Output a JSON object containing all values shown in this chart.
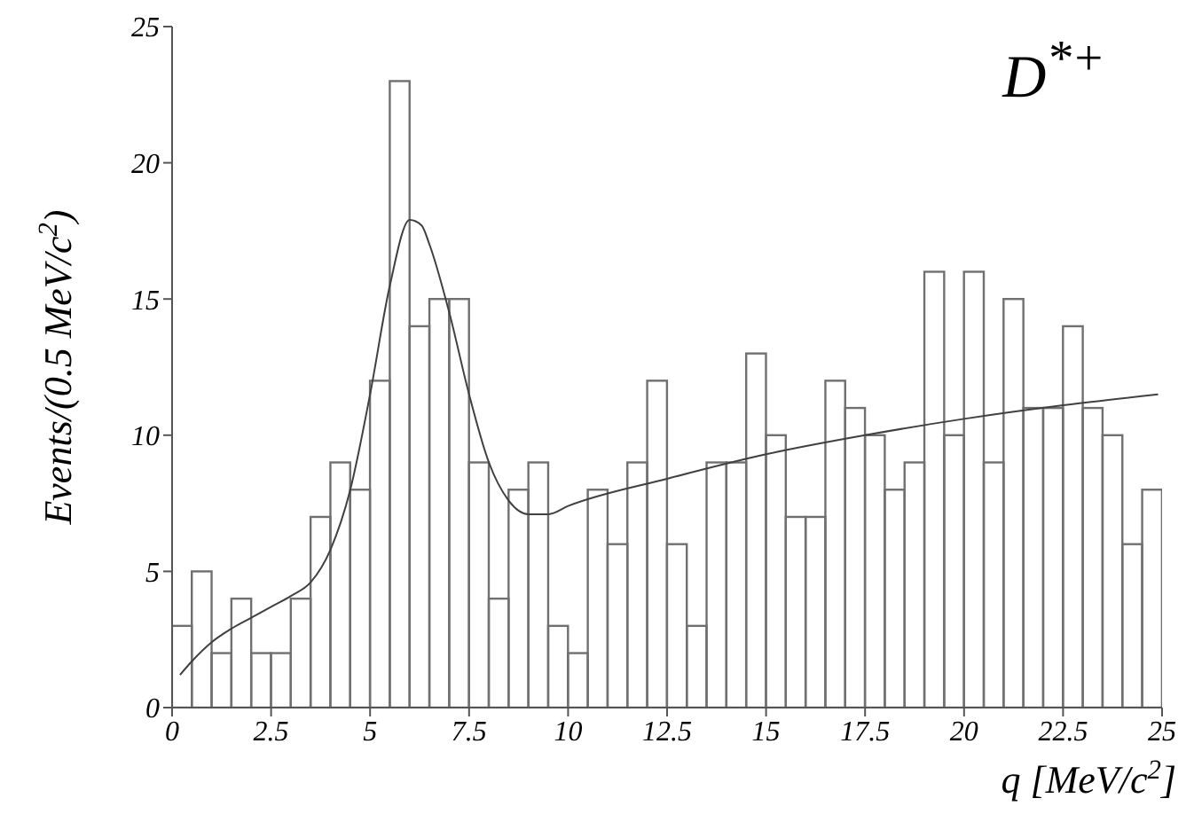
{
  "chart_data": {
    "type": "histogram",
    "title": "D$^{*+}$",
    "xlabel": "q [MeV/c$^{2}$]",
    "ylabel": "Events/(0.5 MeV/c$^{2}$)",
    "bins": [
      0,
      0.5,
      1,
      1.5,
      2,
      2.5,
      3,
      3.5,
      4,
      4.5,
      5,
      5.5,
      6,
      6.5,
      7,
      7.5,
      8,
      8.5,
      9,
      9.5,
      10,
      10.5,
      11,
      11.5,
      12,
      12.5,
      13,
      13.5,
      14,
      14.5,
      15,
      15.5,
      16,
      16.5,
      17,
      17.5,
      18,
      18.5,
      19,
      19.5,
      20,
      20.5,
      21,
      21.5,
      22,
      22.5,
      23,
      23.5,
      24,
      24.5,
      25
    ],
    "series": [
      {
        "color": "#707070",
        "values": [
          3,
          5,
          2,
          4,
          2,
          2,
          4,
          7,
          9,
          8,
          12,
          23,
          14,
          15,
          15,
          9,
          4,
          8,
          9,
          3,
          2,
          8,
          6,
          9,
          12,
          6,
          3,
          9,
          9,
          13,
          10,
          7,
          7,
          12,
          11,
          10,
          8,
          9,
          16,
          10,
          16,
          9,
          15,
          11,
          11,
          14,
          11,
          10,
          6,
          8
        ]
      },
      {
        "type": "line",
        "color": "#404040",
        "x": [
          0.2,
          0.5,
          1,
          1.5,
          2,
          2.5,
          3,
          3.5,
          4,
          4.5,
          5,
          5.5,
          6,
          6.3,
          6.5,
          7,
          7.5,
          8,
          8.5,
          9,
          9.5,
          10,
          12.5,
          15,
          17.5,
          20,
          22.5,
          24.9
        ],
        "values": [
          1.2,
          1.7,
          2.4,
          2.9,
          3.3,
          3.7,
          4.1,
          4.6,
          5.8,
          8,
          11.5,
          15.5,
          17.9,
          17.7,
          17,
          14.5,
          11.5,
          9,
          7.6,
          7.1,
          7.1,
          7.4,
          8.4,
          9.3,
          10,
          10.6,
          11.1,
          11.5
        ]
      }
    ],
    "xlim": [
      0,
      25
    ],
    "xticks": [
      0,
      2.5,
      5,
      7.5,
      10,
      12.5,
      15,
      17.5,
      20,
      22.5,
      25
    ],
    "ylim": [
      0,
      25
    ],
    "yticks": [
      0,
      5,
      10,
      15,
      20,
      25
    ],
    "grid": false,
    "legend": false,
    "marker": "none"
  }
}
